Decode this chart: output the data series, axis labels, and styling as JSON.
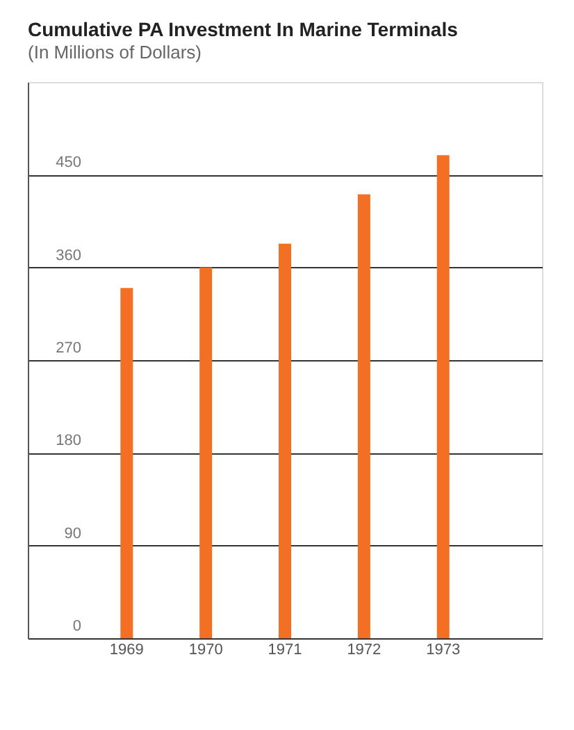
{
  "chart_data": {
    "type": "bar",
    "title": "Cumulative PA Investment In Marine Terminals",
    "subtitle": "(In Millions of Dollars)",
    "categories": [
      "1969",
      "1970",
      "1971",
      "1972",
      "1973"
    ],
    "values": [
      340,
      360,
      383,
      431,
      469
    ],
    "color": "#f26f24",
    "ylim": [
      0,
      540
    ],
    "yticks": [
      0,
      90,
      180,
      270,
      360,
      450
    ],
    "grid": "y"
  }
}
